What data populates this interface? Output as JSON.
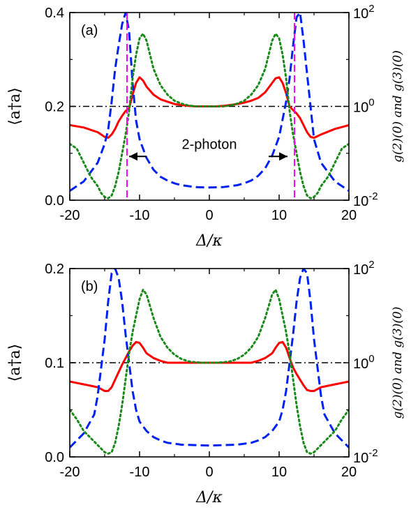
{
  "chart_data": [
    {
      "type": "line",
      "panel_label": "(a)",
      "xlabel": "Δ/κ",
      "ylabel": "⟨a†a⟩",
      "ylabel_right": "g(2)(0) and g(3)(0)",
      "xlim": [
        -20,
        20
      ],
      "ylim": [
        0,
        0.4
      ],
      "ylim_right_log10": [
        -2,
        2
      ],
      "x_ticks": [
        "-20",
        "-10",
        "0",
        "10",
        "20"
      ],
      "y_ticks": [
        "0.0",
        "0.2",
        "0.4"
      ],
      "y_right_ticks": [
        {
          "base": "10",
          "exp": "-2"
        },
        {
          "base": "10",
          "exp": "0"
        },
        {
          "base": "10",
          "exp": "2"
        }
      ],
      "annotation": {
        "text": "2-photon",
        "arrow_from_left_x": -9,
        "arrow_to_left_x": -11.5,
        "arrow_from_right_x": 8.5,
        "arrow_to_right_x": 11.2,
        "y": 0.12
      },
      "vlines_x": [
        -11.8,
        12.2
      ],
      "hline_y_right_log10": 0,
      "grid": false,
      "legend": "none",
      "colors": {
        "photon_number": "#ff0000",
        "g2": "#0022ee",
        "g3": "#1a8a1a",
        "vline": "#ff00ff",
        "hline": "#000000"
      },
      "series": [
        {
          "axis": "left",
          "style": "solid",
          "x": [
            -20,
            -18,
            -16,
            -15,
            -14.5,
            -14,
            -13.5,
            -13,
            -12.5,
            -12,
            -11.5,
            -11,
            -10.5,
            -10,
            -9.5,
            -9,
            -8,
            -7,
            -6,
            -5,
            -4,
            -3,
            -2,
            -1,
            0,
            1,
            2,
            3,
            4,
            5,
            6,
            7,
            8,
            9,
            9.5,
            10,
            10.5,
            11,
            11.5,
            12,
            12.5,
            13,
            13.5,
            14,
            14.5,
            15,
            16,
            18,
            20
          ],
          "y": [
            0.16,
            0.155,
            0.145,
            0.135,
            0.133,
            0.14,
            0.152,
            0.168,
            0.18,
            0.19,
            0.196,
            0.225,
            0.25,
            0.262,
            0.255,
            0.242,
            0.225,
            0.215,
            0.21,
            0.205,
            0.203,
            0.201,
            0.2,
            0.2,
            0.2,
            0.2,
            0.201,
            0.203,
            0.205,
            0.208,
            0.212,
            0.218,
            0.23,
            0.25,
            0.26,
            0.262,
            0.25,
            0.228,
            0.2,
            0.192,
            0.185,
            0.175,
            0.16,
            0.145,
            0.135,
            0.133,
            0.14,
            0.152,
            0.16
          ]
        },
        {
          "axis": "right",
          "style": "dashed",
          "x": [
            -20,
            -18,
            -16,
            -15,
            -14.5,
            -14,
            -13.5,
            -13,
            -12.5,
            -12,
            -11.5,
            -11,
            -10.5,
            -10,
            -9,
            -8,
            -7,
            -6,
            -5,
            -4,
            -2,
            0,
            2,
            4,
            5,
            6,
            7,
            8,
            9,
            10,
            11,
            11.5,
            12,
            12.5,
            13,
            13.5,
            14,
            14.5,
            15,
            16,
            18,
            20
          ],
          "y_log10": [
            -1.8,
            -1.6,
            -1.2,
            -0.8,
            -0.5,
            0.1,
            0.8,
            1.3,
            1.75,
            2.0,
            1.6,
            0.5,
            -0.3,
            -0.7,
            -1.1,
            -1.35,
            -1.5,
            -1.58,
            -1.64,
            -1.68,
            -1.72,
            -1.73,
            -1.72,
            -1.68,
            -1.64,
            -1.58,
            -1.48,
            -1.32,
            -1.05,
            -0.65,
            0.1,
            0.6,
            1.3,
            1.9,
            2.0,
            1.4,
            0.7,
            0.0,
            -0.7,
            -1.2,
            -1.6,
            -1.8
          ]
        },
        {
          "axis": "right",
          "style": "dotted",
          "x": [
            -20,
            -19,
            -18,
            -17,
            -16,
            -15.5,
            -15,
            -14.5,
            -14,
            -13.5,
            -13,
            -12.5,
            -12,
            -11.5,
            -11,
            -10.5,
            -10,
            -9.5,
            -9,
            -8.5,
            -8,
            -7,
            -6,
            -5,
            -4,
            -3,
            -2,
            -1,
            0,
            1,
            2,
            3,
            4,
            5,
            6,
            7,
            8,
            8.5,
            9,
            9.5,
            10,
            10.5,
            11,
            11.5,
            12,
            12.5,
            13,
            13.5,
            14,
            14.5,
            15,
            15.5,
            16,
            17,
            18,
            19,
            20
          ],
          "y_log10": [
            -0.8,
            -0.9,
            -1.2,
            -1.5,
            -1.7,
            -1.85,
            -1.93,
            -1.96,
            -1.9,
            -1.7,
            -1.4,
            -1.0,
            -0.6,
            -0.1,
            0.6,
            1.1,
            1.45,
            1.55,
            1.4,
            1.1,
            0.8,
            0.45,
            0.25,
            0.12,
            0.06,
            0.02,
            0.0,
            0.0,
            0.0,
            0.0,
            0.0,
            0.02,
            0.06,
            0.12,
            0.25,
            0.45,
            0.8,
            1.1,
            1.4,
            1.55,
            1.45,
            1.1,
            0.6,
            -0.1,
            -0.6,
            -1.0,
            -1.4,
            -1.7,
            -1.9,
            -1.96,
            -1.93,
            -1.85,
            -1.7,
            -1.5,
            -1.2,
            -0.9,
            -0.8
          ]
        }
      ]
    },
    {
      "type": "line",
      "panel_label": "(b)",
      "xlabel": "Δ/κ",
      "ylabel": "⟨a†a⟩",
      "ylabel_right": "g(2)(0) and g(3)(0)",
      "xlim": [
        -20,
        20
      ],
      "ylim": [
        0,
        0.2
      ],
      "ylim_right_log10": [
        -2,
        2
      ],
      "x_ticks": [
        "-20",
        "-10",
        "0",
        "10",
        "20"
      ],
      "y_ticks": [
        "0.0",
        "0.1",
        "0.2"
      ],
      "y_right_ticks": [
        {
          "base": "10",
          "exp": "-2"
        },
        {
          "base": "10",
          "exp": "0"
        },
        {
          "base": "10",
          "exp": "2"
        }
      ],
      "hline_y_right_log10": 0,
      "grid": false,
      "legend": "none",
      "colors": {
        "photon_number": "#ff0000",
        "g2": "#0022ee",
        "g3": "#1a8a1a",
        "hline": "#000000"
      },
      "series": [
        {
          "axis": "left",
          "style": "solid",
          "x": [
            -20,
            -18,
            -16,
            -15,
            -14.5,
            -14,
            -13.5,
            -13,
            -12.5,
            -12,
            -11.5,
            -11,
            -10.5,
            -10,
            -9.5,
            -9,
            -8,
            -7,
            -6,
            -5,
            -4,
            -3,
            -2,
            -1,
            0,
            1,
            2,
            3,
            4,
            5,
            6,
            7,
            8,
            9,
            9.5,
            10,
            10.5,
            11,
            11.5,
            12,
            12.5,
            13,
            13.5,
            14,
            14.5,
            15,
            16,
            18,
            20
          ],
          "y": [
            0.08,
            0.077,
            0.074,
            0.07,
            0.07,
            0.074,
            0.082,
            0.09,
            0.098,
            0.105,
            0.112,
            0.118,
            0.122,
            0.121,
            0.116,
            0.11,
            0.105,
            0.102,
            0.1,
            0.1,
            0.1,
            0.1,
            0.1,
            0.1,
            0.1,
            0.1,
            0.1,
            0.1,
            0.1,
            0.1,
            0.1,
            0.102,
            0.105,
            0.11,
            0.116,
            0.121,
            0.122,
            0.116,
            0.105,
            0.095,
            0.088,
            0.082,
            0.076,
            0.071,
            0.07,
            0.07,
            0.074,
            0.077,
            0.08
          ]
        },
        {
          "axis": "right",
          "style": "dashed",
          "x": [
            -20,
            -18,
            -16.5,
            -16,
            -15.5,
            -15,
            -14.5,
            -14,
            -13.5,
            -13,
            -12.5,
            -12,
            -11.5,
            -11,
            -10.5,
            -10,
            -9,
            -8,
            -7,
            -6,
            -5,
            -4,
            -2,
            0,
            2,
            4,
            5,
            6,
            7,
            8,
            9,
            10,
            10.5,
            11,
            11.5,
            12,
            12.5,
            13,
            13.5,
            14,
            14.5,
            15,
            15.5,
            16,
            16.5,
            18,
            20
          ],
          "y_log10": [
            -1.8,
            -1.5,
            -1.1,
            -0.7,
            -0.1,
            0.5,
            1.3,
            1.9,
            2.0,
            1.8,
            1.3,
            0.6,
            0.0,
            -0.6,
            -1.0,
            -1.25,
            -1.45,
            -1.58,
            -1.65,
            -1.7,
            -1.72,
            -1.74,
            -1.75,
            -1.76,
            -1.75,
            -1.74,
            -1.72,
            -1.7,
            -1.65,
            -1.58,
            -1.45,
            -1.25,
            -1.0,
            -0.6,
            0.0,
            0.6,
            1.3,
            1.8,
            2.0,
            1.9,
            1.3,
            0.5,
            -0.1,
            -0.7,
            -1.1,
            -1.5,
            -1.8
          ]
        },
        {
          "axis": "right",
          "style": "dotted",
          "x": [
            -20,
            -19,
            -18,
            -17,
            -16,
            -15,
            -14.5,
            -14,
            -13.5,
            -13,
            -12.5,
            -12,
            -11.5,
            -11,
            -10.5,
            -10,
            -9.5,
            -9,
            -8.5,
            -8,
            -7,
            -6,
            -5,
            -4,
            -3,
            -2,
            -1,
            0,
            1,
            2,
            3,
            4,
            5,
            6,
            7,
            8,
            8.5,
            9,
            9.5,
            10,
            10.5,
            11,
            11.5,
            12,
            12.5,
            13,
            13.5,
            14,
            14.5,
            15,
            16,
            17,
            18,
            19,
            20
          ],
          "y_log10": [
            -1.0,
            -1.2,
            -1.45,
            -1.6,
            -1.75,
            -1.9,
            -1.93,
            -1.9,
            -1.7,
            -1.35,
            -0.9,
            -0.35,
            0.2,
            0.65,
            1.0,
            1.35,
            1.55,
            1.45,
            1.2,
            0.95,
            0.55,
            0.32,
            0.17,
            0.08,
            0.03,
            0.01,
            0.0,
            0.0,
            0.0,
            0.01,
            0.03,
            0.08,
            0.17,
            0.32,
            0.55,
            0.95,
            1.2,
            1.45,
            1.55,
            1.35,
            1.0,
            0.65,
            0.2,
            -0.35,
            -0.9,
            -1.35,
            -1.7,
            -1.9,
            -1.93,
            -1.9,
            -1.75,
            -1.6,
            -1.45,
            -1.2,
            -1.0
          ]
        }
      ]
    }
  ]
}
